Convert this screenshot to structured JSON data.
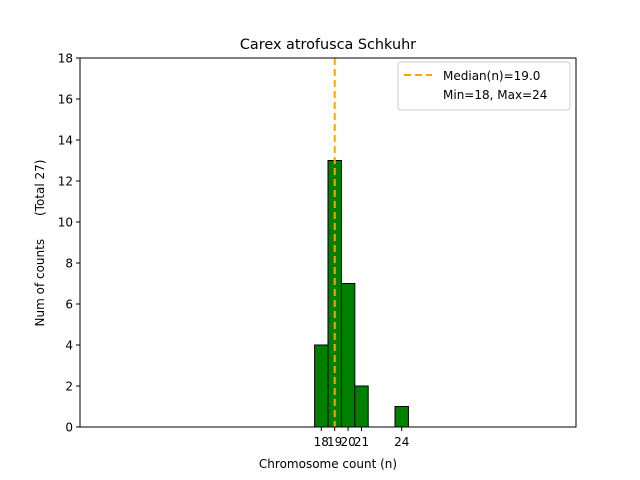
{
  "chart_data": {
    "type": "bar",
    "title": "Carex atrofusca Schkuhr",
    "xlabel": "Chromosome count (n)",
    "ylabel": "Num of counts      (Total 27)",
    "xlim": [
      0,
      37
    ],
    "ylim": [
      0,
      18
    ],
    "xticks": [
      18,
      19,
      20,
      21,
      24
    ],
    "yticks": [
      0,
      2,
      4,
      6,
      8,
      10,
      12,
      14,
      16,
      18
    ],
    "bars": [
      {
        "x": 18,
        "value": 4
      },
      {
        "x": 19,
        "value": 13
      },
      {
        "x": 20,
        "value": 7
      },
      {
        "x": 21,
        "value": 2
      },
      {
        "x": 22,
        "value": 0
      },
      {
        "x": 23,
        "value": 0
      },
      {
        "x": 24,
        "value": 1
      },
      {
        "x": 25,
        "value": 0
      },
      {
        "x": 26,
        "value": 0
      }
    ],
    "bar_color": "#008000",
    "baseline_start": 0,
    "median": 19.0,
    "median_color": "#FFA500",
    "legend": {
      "placement": "top-right",
      "entries": [
        "Median(n)=19.0",
        "Min=18, Max=24"
      ]
    }
  }
}
